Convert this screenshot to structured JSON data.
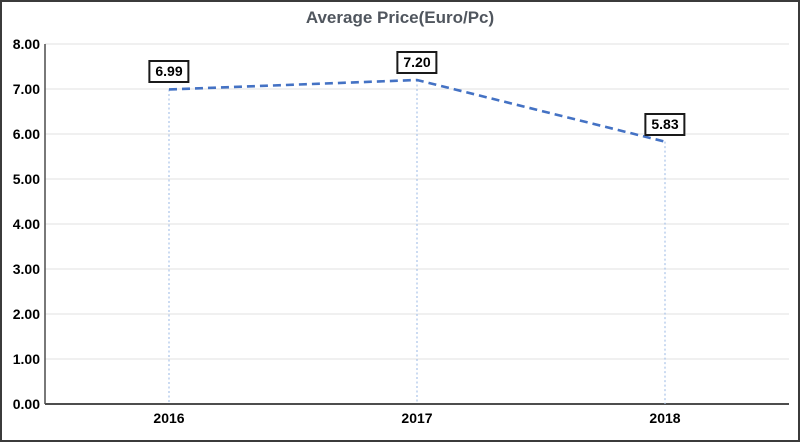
{
  "chart_data": {
    "type": "line",
    "title": "Average Price(Euro/Pc)",
    "categories": [
      "2016",
      "2017",
      "2018"
    ],
    "values": [
      6.99,
      7.2,
      5.83
    ],
    "point_labels": [
      "6.99",
      "7.20",
      "5.83"
    ],
    "ylim": [
      0,
      8
    ],
    "ytick_step": 1,
    "ytick_labels": [
      "0.00",
      "1.00",
      "2.00",
      "3.00",
      "4.00",
      "5.00",
      "6.00",
      "7.00",
      "8.00"
    ],
    "xlabel": "",
    "ylabel": "",
    "grid": "horizontal",
    "legend": "none",
    "line_style": "dashed",
    "markers": "none",
    "drop_lines": "dotted",
    "colors": {
      "series_line": "#4472C4",
      "drop_line": "#A9C3E8",
      "gridline": "#E2E2E2",
      "axis_line": "#4d4d4d",
      "title_text": "#50565E",
      "tick_text": "#000000",
      "label_text": "#000000",
      "label_border": "#1a1a1a",
      "label_bg": "#FFFFFF",
      "frame_border": "#3b3b3b",
      "background": "#FFFFFF"
    }
  }
}
